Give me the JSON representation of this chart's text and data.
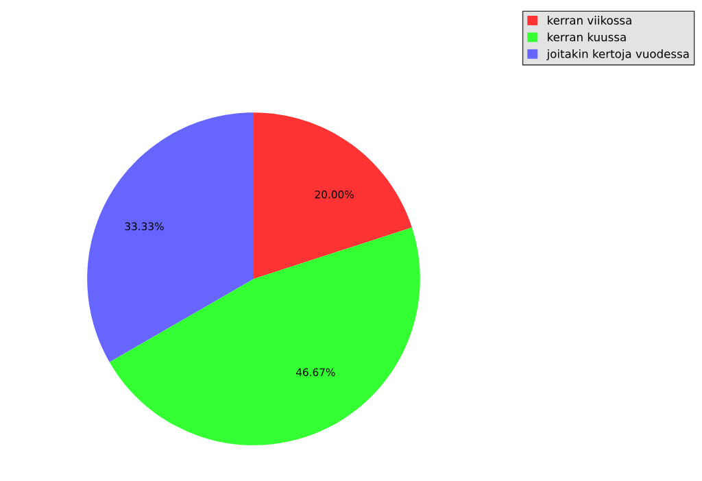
{
  "chart_data": {
    "type": "pie",
    "categories": [
      "kerran viikossa",
      "kerran kuussa",
      "joitakin kertoja vuodessa"
    ],
    "values": [
      20.0,
      46.67,
      33.33
    ],
    "value_labels": [
      "20.00%",
      "46.67%",
      "33.33%"
    ],
    "colors": [
      "#ff3333",
      "#33ff33",
      "#6666ff"
    ],
    "legend": "top right"
  }
}
